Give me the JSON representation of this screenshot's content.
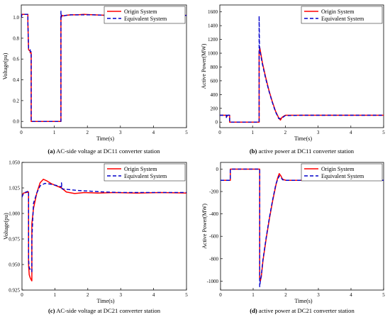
{
  "colors": {
    "origin": "#ff0000",
    "equivalent": "#0000cc",
    "axis": "#000000"
  },
  "chart_data": [
    {
      "type": "line",
      "caption_letter": "(a)",
      "caption_text": " AC-side voltage at DC11 converter station",
      "xlabel": "Time(s)",
      "ylabel": "Voltage(pu)",
      "xlim": [
        0,
        5
      ],
      "ylim": [
        -0.06,
        1.12
      ],
      "xticks": [
        "0",
        "1",
        "2",
        "3",
        "4",
        "5"
      ],
      "yticks": [
        0.0,
        0.2,
        0.4,
        0.6,
        0.8,
        1.0
      ],
      "ytick_labels": [
        "0.0",
        "0.2",
        "0.4",
        "0.6",
        "0.8",
        "1.0"
      ],
      "legend": "top-right",
      "grid": false,
      "series": [
        {
          "name": "Origin System",
          "style": "solid",
          "x": [
            0,
            0.02,
            0.2,
            0.2,
            0.22,
            0.22,
            0.25,
            0.27,
            0.27,
            0.3,
            0.3,
            1.2,
            1.2,
            1.21,
            1.24,
            1.28,
            1.35,
            1.5,
            1.7,
            1.9,
            2.2,
            2.6,
            3.0,
            3.5,
            4.0,
            4.5,
            5.0
          ],
          "y": [
            1.0,
            1.03,
            1.03,
            0.95,
            0.7,
            0.69,
            0.68,
            0.68,
            0.66,
            0.66,
            0.0,
            0.0,
            1.01,
            1.0,
            1.02,
            1.015,
            1.02,
            1.025,
            1.025,
            1.03,
            1.025,
            1.02,
            1.02,
            1.02,
            1.02,
            1.02,
            1.02
          ]
        },
        {
          "name": "Equivalent System",
          "style": "dashed",
          "x": [
            0,
            0.02,
            0.2,
            0.2,
            0.22,
            0.22,
            0.25,
            0.27,
            0.27,
            0.3,
            0.3,
            1.2,
            1.2,
            1.21,
            1.24,
            1.28,
            1.35,
            1.5,
            1.7,
            1.9,
            2.2,
            2.6,
            3.0,
            3.5,
            4.0,
            4.5,
            5.0
          ],
          "y": [
            1.0,
            1.03,
            1.03,
            0.95,
            0.71,
            0.7,
            0.69,
            0.69,
            0.67,
            0.67,
            0.0,
            0.0,
            1.06,
            1.01,
            1.02,
            1.015,
            1.02,
            1.025,
            1.025,
            1.025,
            1.025,
            1.02,
            1.02,
            1.02,
            1.02,
            1.02,
            1.02
          ]
        }
      ]
    },
    {
      "type": "line",
      "caption_letter": "(b)",
      "caption_text": " active power at DC11 converter station",
      "xlabel": "Time(s)",
      "ylabel": "Active Power(MW)",
      "xlim": [
        0,
        5
      ],
      "ylim": [
        -80,
        1700
      ],
      "xticks": [
        "0",
        "1",
        "2",
        "3",
        "4",
        "5"
      ],
      "yticks": [
        0,
        200,
        400,
        600,
        800,
        1000,
        1200,
        1400,
        1600
      ],
      "ytick_labels": [
        "0",
        "200",
        "400",
        "600",
        "800",
        "1000",
        "1200",
        "1400",
        "1600"
      ],
      "legend": "top-right",
      "grid": false,
      "series": [
        {
          "name": "Origin System",
          "style": "solid",
          "x": [
            0,
            0.2,
            0.2,
            0.23,
            0.25,
            0.27,
            0.3,
            0.3,
            1.2,
            1.2,
            1.22,
            1.3,
            1.4,
            1.5,
            1.6,
            1.7,
            1.8,
            1.85,
            1.9,
            2.0,
            2.5,
            3.0,
            4.0,
            5.0
          ],
          "y": [
            100,
            100,
            70,
            95,
            100,
            100,
            100,
            0,
            0,
            1020,
            1080,
            860,
            650,
            460,
            300,
            160,
            60,
            30,
            70,
            100,
            100,
            100,
            100,
            100
          ]
        },
        {
          "name": "Equivalent System",
          "style": "dashed",
          "x": [
            0,
            0.2,
            0.2,
            0.23,
            0.25,
            0.27,
            0.3,
            0.3,
            1.2,
            1.2,
            1.21,
            1.22,
            1.3,
            1.4,
            1.5,
            1.6,
            1.7,
            1.8,
            1.9,
            2.0,
            2.5,
            3.0,
            4.0,
            5.0
          ],
          "y": [
            100,
            100,
            60,
            100,
            100,
            100,
            100,
            0,
            0,
            1540,
            1120,
            1050,
            840,
            630,
            450,
            290,
            150,
            50,
            60,
            95,
            100,
            100,
            100,
            100
          ]
        }
      ]
    },
    {
      "type": "line",
      "caption_letter": "(c)",
      "caption_text": " AC-side voltage at DC21 converter station",
      "xlabel": "Time(s)",
      "ylabel": "Voltage(pu)",
      "xlim": [
        0,
        5
      ],
      "ylim": [
        0.925,
        1.05
      ],
      "xticks": [
        "0",
        "1",
        "2",
        "3",
        "4",
        "5"
      ],
      "yticks": [
        0.925,
        0.95,
        0.975,
        1.0,
        1.025,
        1.05
      ],
      "ytick_labels": [
        "0.925",
        "0.950",
        "0.975",
        "1.000",
        "1.025",
        "1.050"
      ],
      "legend": "top-right",
      "grid": false,
      "series": [
        {
          "name": "Origin System",
          "style": "solid",
          "x": [
            0,
            0.05,
            0.2,
            0.2,
            0.22,
            0.25,
            0.28,
            0.3,
            0.3,
            0.35,
            0.45,
            0.55,
            0.65,
            0.75,
            0.9,
            1.05,
            1.2,
            1.35,
            1.6,
            1.9,
            2.3,
            2.8,
            3.5,
            4.2,
            5.0
          ],
          "y": [
            1.018,
            1.02,
            1.021,
            0.95,
            0.94,
            0.937,
            0.935,
            0.934,
            0.99,
            1.005,
            1.02,
            1.03,
            1.0335,
            1.032,
            1.029,
            1.027,
            1.025,
            1.021,
            1.0195,
            1.0205,
            1.02,
            1.0205,
            1.02,
            1.0205,
            1.02
          ]
        },
        {
          "name": "Equivalent System",
          "style": "dashed",
          "x": [
            0,
            0.05,
            0.2,
            0.2,
            0.22,
            0.25,
            0.28,
            0.3,
            0.3,
            0.35,
            0.45,
            0.55,
            0.7,
            0.9,
            1.1,
            1.2,
            1.2,
            1.22,
            1.4,
            1.7,
            2.0,
            2.5,
            3.0,
            3.5,
            4.0,
            5.0
          ],
          "y": [
            1.016,
            1.02,
            1.022,
            0.955,
            0.947,
            0.945,
            0.944,
            0.943,
            0.975,
            1.01,
            1.02,
            1.027,
            1.0295,
            1.0285,
            1.027,
            1.026,
            1.03,
            1.024,
            1.0235,
            1.0225,
            1.022,
            1.021,
            1.0205,
            1.0205,
            1.0205,
            1.0205
          ]
        }
      ]
    },
    {
      "type": "line",
      "caption_letter": "(d)",
      "caption_text": " active power at DC21 converter station",
      "xlabel": "Time(s)",
      "ylabel": "Active Power(MW)",
      "xlim": [
        0,
        5
      ],
      "ylim": [
        -1080,
        60
      ],
      "xticks": [
        "0",
        "1",
        "2",
        "3",
        "4",
        "5"
      ],
      "yticks": [
        0,
        -200,
        -400,
        -600,
        -800,
        -1000
      ],
      "ytick_labels": [
        "0",
        "-200",
        "-400",
        "-600",
        "-800",
        "-1000"
      ],
      "legend": "top-right",
      "grid": false,
      "series": [
        {
          "name": "Origin System",
          "style": "solid",
          "x": [
            0,
            0.2,
            0.3,
            0.3,
            0.5,
            1.2,
            1.2,
            1.22,
            1.25,
            1.3,
            1.4,
            1.5,
            1.6,
            1.7,
            1.75,
            1.8,
            1.85,
            1.9,
            2.0,
            2.5,
            3.0,
            4.0,
            5.0
          ],
          "y": [
            -100,
            -100,
            -100,
            0,
            0,
            0,
            -980,
            -1000,
            -960,
            -820,
            -620,
            -440,
            -280,
            -140,
            -80,
            -40,
            -60,
            -90,
            -100,
            -100,
            -100,
            -100,
            -100
          ]
        },
        {
          "name": "Equivalent System",
          "style": "dashed",
          "x": [
            0,
            0.2,
            0.3,
            0.3,
            0.5,
            1.2,
            1.2,
            1.22,
            1.25,
            1.3,
            1.4,
            1.5,
            1.6,
            1.7,
            1.8,
            1.85,
            1.9,
            2.0,
            2.5,
            3.0,
            4.0,
            5.0
          ],
          "y": [
            -100,
            -100,
            -100,
            0,
            0,
            0,
            -1050,
            -1000,
            -950,
            -810,
            -610,
            -430,
            -270,
            -130,
            -60,
            -70,
            -95,
            -100,
            -100,
            -100,
            -100,
            -100
          ]
        }
      ]
    }
  ]
}
